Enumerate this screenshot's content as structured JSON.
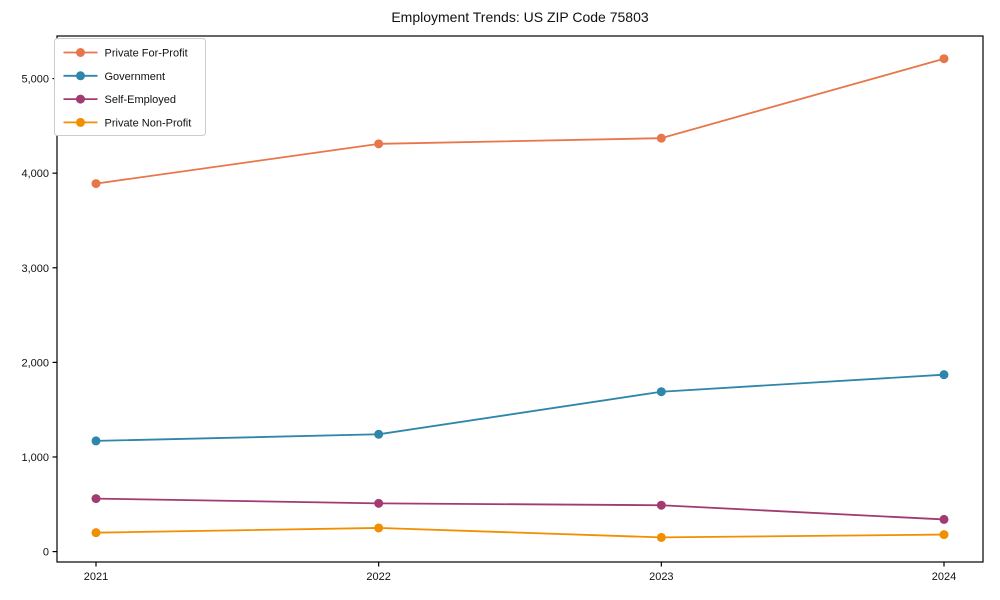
{
  "chart_data": {
    "type": "line",
    "title": "Employment Trends: US ZIP Code 75803",
    "xlabel": "",
    "ylabel": "",
    "x": [
      2021,
      2022,
      2023,
      2024
    ],
    "x_tick_labels": [
      "2021",
      "2022",
      "2023",
      "2024"
    ],
    "y_ticks": [
      0,
      1000,
      2000,
      3000,
      4000,
      5000
    ],
    "y_tick_labels": [
      "0",
      "1,000",
      "2,000",
      "3,000",
      "4,000",
      "5,000"
    ],
    "ylim": [
      -110,
      5450
    ],
    "grid": false,
    "legend_position": "upper-left",
    "series": [
      {
        "name": "Private For-Profit",
        "color": "#e8764b",
        "values": [
          3890,
          4310,
          4370,
          5210
        ]
      },
      {
        "name": "Government",
        "color": "#2e86ab",
        "values": [
          1170,
          1240,
          1690,
          1870
        ]
      },
      {
        "name": "Self-Employed",
        "color": "#a23b72",
        "values": [
          560,
          510,
          490,
          340
        ]
      },
      {
        "name": "Private Non-Profit",
        "color": "#f18f01",
        "values": [
          200,
          250,
          150,
          180
        ]
      }
    ],
    "frame_color": "#000000",
    "legend_border_color": "#cccccc"
  }
}
